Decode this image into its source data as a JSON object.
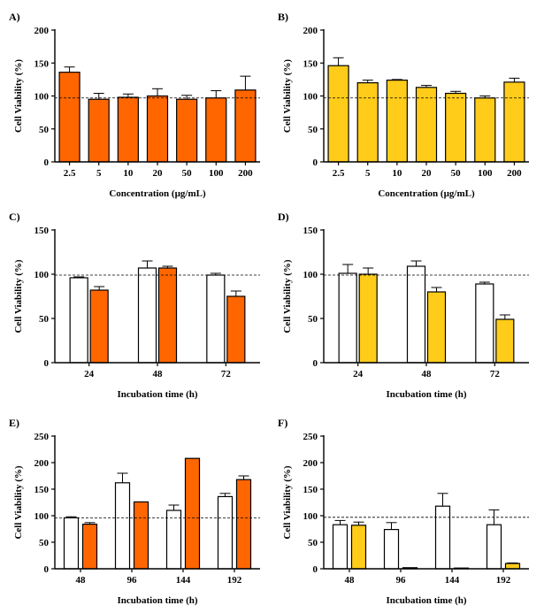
{
  "colors": {
    "orange": "#FF6600",
    "yellow": "#FFCC1A",
    "white": "#FFFFFF",
    "stroke": "#000000"
  },
  "chart_data": [
    {
      "id": "A",
      "panel_label": "A)",
      "type": "bar",
      "categories": [
        "2.5",
        "5",
        "10",
        "20",
        "50",
        "100",
        "200"
      ],
      "series": [
        {
          "values": [
            136,
            95,
            98,
            100,
            95,
            97,
            109
          ],
          "errors": [
            8,
            9,
            5,
            11,
            6,
            11,
            21
          ],
          "color": "orange"
        }
      ],
      "ylim": [
        0,
        200
      ],
      "yticks": [
        0,
        50,
        100,
        150,
        200
      ],
      "xlabel": "Concentration (µg/mL)",
      "ylabel": "Cell Viability (%)",
      "reference_line": 97,
      "grid": false
    },
    {
      "id": "B",
      "panel_label": "B)",
      "type": "bar",
      "categories": [
        "2.5",
        "5",
        "10",
        "20",
        "50",
        "100",
        "200"
      ],
      "series": [
        {
          "values": [
            146,
            120,
            124,
            113,
            104,
            97,
            121
          ],
          "errors": [
            12,
            4,
            1,
            3,
            3,
            3,
            6
          ],
          "color": "yellow"
        }
      ],
      "ylim": [
        0,
        200
      ],
      "yticks": [
        0,
        50,
        100,
        150,
        200
      ],
      "xlabel": "Concentration (µg/mL)",
      "ylabel": "Cell Viability (%)",
      "reference_line": 97,
      "grid": false
    },
    {
      "id": "C",
      "panel_label": "C)",
      "type": "bar",
      "categories": [
        "24",
        "48",
        "72"
      ],
      "series": [
        {
          "values": [
            96,
            107,
            99
          ],
          "errors": [
            1,
            8,
            2
          ],
          "color": "white"
        },
        {
          "values": [
            82,
            107,
            75
          ],
          "errors": [
            4,
            2,
            6
          ],
          "color": "orange"
        }
      ],
      "ylim": [
        0,
        150
      ],
      "yticks": [
        0,
        50,
        100,
        150
      ],
      "xlabel": "Incubation time (h)",
      "ylabel": "Cell Viability (%)",
      "reference_line": 99,
      "grid": false
    },
    {
      "id": "D",
      "panel_label": "D)",
      "type": "bar",
      "categories": [
        "24",
        "48",
        "72"
      ],
      "series": [
        {
          "values": [
            101,
            109,
            89
          ],
          "errors": [
            10,
            6,
            2
          ],
          "color": "white"
        },
        {
          "values": [
            100,
            80,
            49
          ],
          "errors": [
            7,
            5,
            5
          ],
          "color": "yellow"
        }
      ],
      "ylim": [
        0,
        150
      ],
      "yticks": [
        0,
        50,
        100,
        150
      ],
      "xlabel": "Incubation time (h)",
      "ylabel": "Cell Viability (%)",
      "reference_line": 99,
      "grid": false
    },
    {
      "id": "E",
      "panel_label": "E)",
      "type": "bar",
      "categories": [
        "48",
        "96",
        "144",
        "192"
      ],
      "series": [
        {
          "values": [
            96,
            162,
            110,
            136
          ],
          "errors": [
            2,
            18,
            10,
            6
          ],
          "color": "white"
        },
        {
          "values": [
            84,
            126,
            208,
            168
          ],
          "errors": [
            3,
            0,
            0,
            7
          ],
          "color": "orange"
        }
      ],
      "ylim": [
        0,
        250
      ],
      "yticks": [
        0,
        50,
        100,
        150,
        200,
        250
      ],
      "xlabel": "Incubation time (h)",
      "ylabel": "Cell Viability (%)",
      "reference_line": 96,
      "grid": false
    },
    {
      "id": "F",
      "panel_label": "F)",
      "type": "bar",
      "categories": [
        "48",
        "96",
        "144",
        "192"
      ],
      "series": [
        {
          "values": [
            83,
            74,
            118,
            83
          ],
          "errors": [
            8,
            13,
            24,
            28
          ],
          "color": "white"
        },
        {
          "values": [
            82,
            2,
            0,
            10
          ],
          "errors": [
            6,
            0,
            0,
            1
          ],
          "color": "yellow"
        }
      ],
      "ylim": [
        0,
        250
      ],
      "yticks": [
        0,
        50,
        100,
        150,
        200,
        250
      ],
      "xlabel": "Incubation time (h)",
      "ylabel": "Cell Viability (%)",
      "reference_line": 97,
      "grid": false
    }
  ]
}
